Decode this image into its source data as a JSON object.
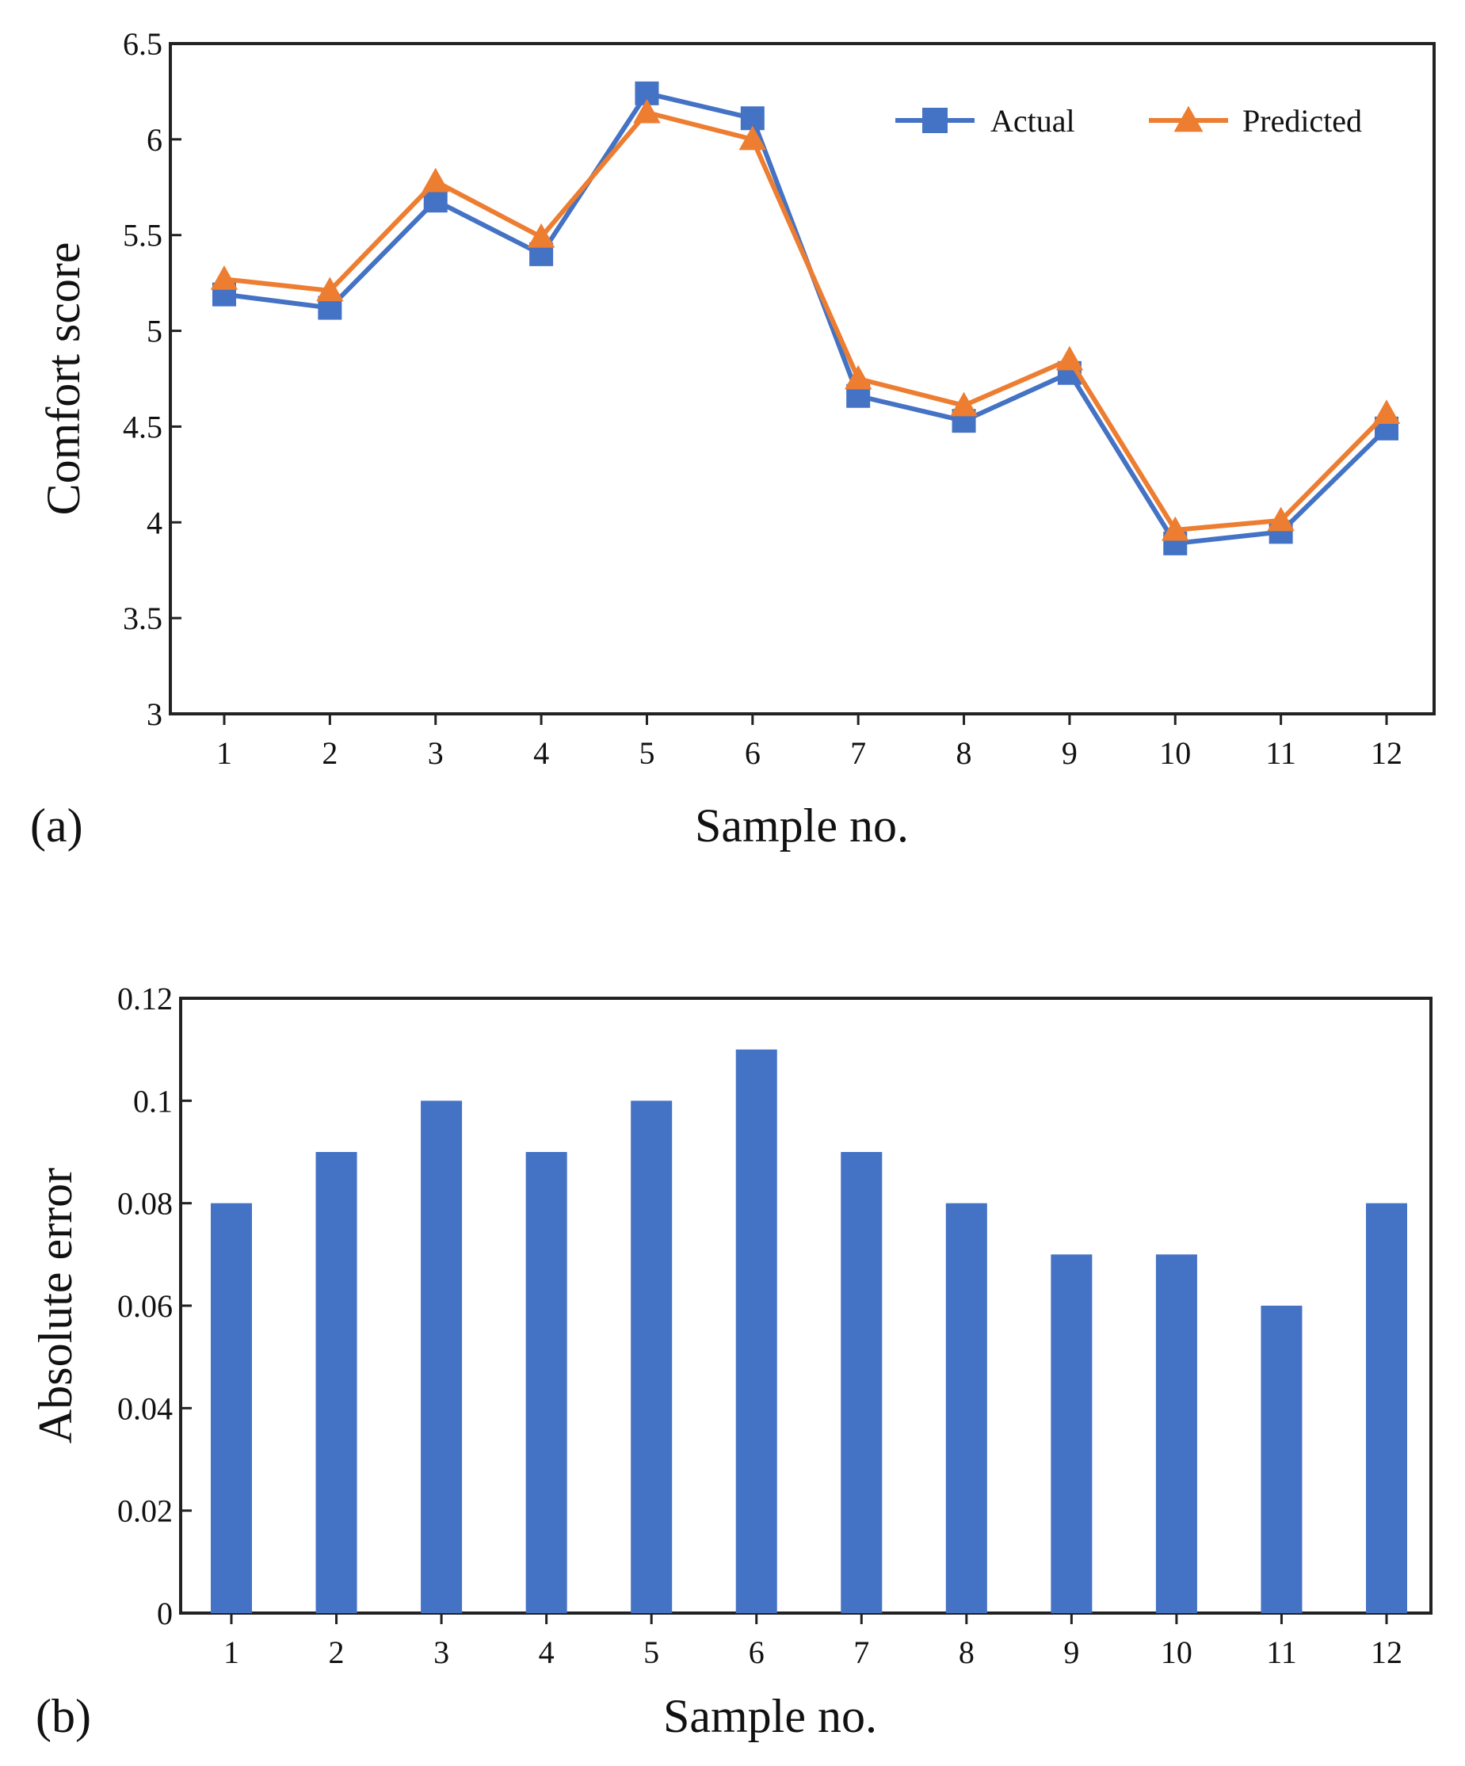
{
  "chart_data": [
    {
      "type": "line",
      "panel_label": "(a)",
      "xlabel": "Sample no.",
      "ylabel": "Comfort score",
      "categories": [
        "1",
        "2",
        "3",
        "4",
        "5",
        "6",
        "7",
        "8",
        "9",
        "10",
        "11",
        "12"
      ],
      "ylim": [
        3,
        6.5
      ],
      "yticks": [
        "3",
        "3.5",
        "4",
        "4.5",
        "5",
        "5.5",
        "6",
        "6.5"
      ],
      "grid": false,
      "legend_position": "top-right",
      "series": [
        {
          "name": "Actual",
          "marker": "square",
          "color": "#4472C4",
          "values": [
            5.19,
            5.12,
            5.68,
            5.4,
            6.24,
            6.11,
            4.66,
            4.53,
            4.78,
            3.89,
            3.95,
            4.49
          ]
        },
        {
          "name": "Predicted",
          "marker": "triangle",
          "color": "#ED7D31",
          "values": [
            5.27,
            5.21,
            5.78,
            5.49,
            6.14,
            6.0,
            4.75,
            4.61,
            4.85,
            3.96,
            4.01,
            4.57
          ]
        }
      ]
    },
    {
      "type": "bar",
      "panel_label": "(b)",
      "xlabel": "Sample no.",
      "ylabel": "Absolute error",
      "categories": [
        "1",
        "2",
        "3",
        "4",
        "5",
        "6",
        "7",
        "8",
        "9",
        "10",
        "11",
        "12"
      ],
      "ylim": [
        0,
        0.12
      ],
      "yticks": [
        "0",
        "0.02",
        "0.04",
        "0.06",
        "0.08",
        "0.1",
        "0.12"
      ],
      "grid": false,
      "color": "#4472C4",
      "values": [
        0.08,
        0.09,
        0.1,
        0.09,
        0.1,
        0.11,
        0.09,
        0.08,
        0.07,
        0.07,
        0.06,
        0.08
      ]
    }
  ]
}
